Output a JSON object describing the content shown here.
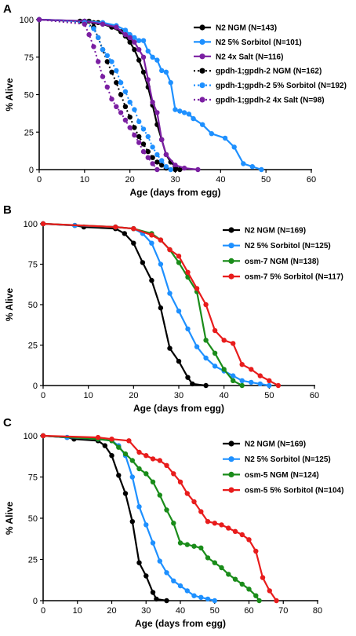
{
  "chart_data": [
    {
      "panel": "A",
      "type": "line",
      "xlabel": "Age (days from egg)",
      "ylabel": "% Alive",
      "xlim": [
        0,
        60
      ],
      "ylim": [
        0,
        100
      ],
      "xticks": [
        0,
        10,
        20,
        30,
        40,
        50,
        60
      ],
      "yticks": [
        0,
        25,
        50,
        75,
        100
      ],
      "legend": "top-right",
      "series": [
        {
          "name": "N2 NGM (N=143)",
          "color": "#000000",
          "style": "solid",
          "x": [
            0,
            9,
            10,
            11,
            12,
            13,
            14,
            16,
            18,
            19,
            20,
            21,
            22,
            23,
            24,
            25,
            26,
            27,
            28,
            29,
            30,
            31
          ],
          "y": [
            100,
            99,
            99,
            99,
            98,
            98,
            97,
            95,
            92,
            89,
            85,
            80,
            73,
            65,
            55,
            43,
            30,
            20,
            10,
            5,
            2,
            0
          ]
        },
        {
          "name": "N2 5% Sorbitol (N=101)",
          "color": "#1e90ff",
          "style": "solid",
          "x": [
            0,
            10,
            14,
            17,
            19,
            20,
            21,
            22,
            23,
            24,
            25,
            26,
            27,
            28,
            29,
            30,
            31,
            32,
            33,
            34,
            36,
            38,
            41,
            43,
            45,
            47,
            49
          ],
          "y": [
            100,
            99,
            98,
            96,
            93,
            90,
            88,
            86,
            86,
            79,
            75,
            73,
            66,
            65,
            58,
            40,
            39,
            38,
            37,
            34,
            30,
            24,
            21,
            15,
            4,
            2,
            0
          ]
        },
        {
          "name": "N2 4x Salt (N=116)",
          "color": "#7b1fa2",
          "style": "solid",
          "x": [
            0,
            10,
            14,
            17,
            19,
            20,
            21,
            22,
            23,
            24,
            25,
            26,
            27,
            28,
            30,
            32,
            35
          ],
          "y": [
            100,
            99,
            97,
            95,
            90,
            88,
            85,
            80,
            75,
            60,
            45,
            38,
            20,
            10,
            3,
            1,
            0
          ]
        },
        {
          "name": "gpdh-1;gpdh-2 NGM (N=162)",
          "color": "#000000",
          "style": "dotted",
          "x": [
            0,
            10,
            12,
            13,
            14,
            15,
            16,
            17,
            18,
            19,
            20,
            21,
            22,
            23,
            24,
            25,
            26,
            27,
            28,
            30
          ],
          "y": [
            100,
            98,
            95,
            88,
            80,
            72,
            65,
            58,
            50,
            42,
            35,
            28,
            22,
            17,
            12,
            8,
            5,
            3,
            1,
            0
          ]
        },
        {
          "name": "gpdh-1;gpdh-2 5% Sorbitol (N=192)",
          "color": "#1e90ff",
          "style": "dotted",
          "x": [
            0,
            10,
            12,
            13,
            14,
            15,
            16,
            17,
            18,
            19,
            20,
            21,
            22,
            23,
            24,
            25,
            26,
            27,
            28,
            29
          ],
          "y": [
            100,
            98,
            94,
            88,
            80,
            76,
            72,
            66,
            58,
            52,
            45,
            40,
            32,
            27,
            22,
            15,
            10,
            6,
            2,
            0
          ]
        },
        {
          "name": "gpdh-1;gpdh-2 4x Salt (N=98)",
          "color": "#7b1fa2",
          "style": "dotted",
          "x": [
            0,
            10,
            11,
            12,
            13,
            14,
            15,
            16,
            17,
            18,
            19,
            20,
            21,
            22,
            23,
            24,
            25,
            26
          ],
          "y": [
            100,
            97,
            90,
            82,
            72,
            62,
            55,
            47,
            42,
            38,
            33,
            28,
            23,
            18,
            12,
            8,
            4,
            0
          ]
        }
      ]
    },
    {
      "panel": "B",
      "type": "line",
      "xlabel": "Age (days from egg)",
      "ylabel": "% Alive",
      "xlim": [
        0,
        60
      ],
      "ylim": [
        0,
        100
      ],
      "xticks": [
        0,
        10,
        20,
        30,
        40,
        50,
        60
      ],
      "yticks": [
        0,
        25,
        50,
        75,
        100
      ],
      "legend": "top-right",
      "series": [
        {
          "name": "N2 NGM (N=169)",
          "color": "#000000",
          "style": "solid",
          "x": [
            0,
            7,
            9,
            16,
            18,
            20,
            22,
            24,
            26,
            28,
            30,
            32,
            33,
            36
          ],
          "y": [
            100,
            99,
            98,
            97,
            94,
            88,
            76,
            65,
            48,
            23,
            15,
            5,
            1,
            0
          ]
        },
        {
          "name": "N2 5% Sorbitol (N=125)",
          "color": "#1e90ff",
          "style": "solid",
          "x": [
            0,
            7,
            16,
            20,
            22,
            24,
            26,
            28,
            30,
            32,
            34,
            36,
            38,
            40,
            42,
            44,
            46,
            48,
            50
          ],
          "y": [
            100,
            99,
            98,
            97,
            94,
            88,
            75,
            57,
            46,
            35,
            24,
            17,
            12,
            9,
            6,
            3,
            2,
            1,
            0
          ]
        },
        {
          "name": "osm-7 NGM (N=138)",
          "color": "#1a8c1a",
          "style": "solid",
          "x": [
            0,
            16,
            20,
            24,
            26,
            28,
            30,
            32,
            34,
            36,
            38,
            40,
            42,
            44
          ],
          "y": [
            100,
            98,
            97,
            94,
            90,
            84,
            76,
            67,
            58,
            28,
            20,
            10,
            3,
            0
          ]
        },
        {
          "name": "osm-7 5% Sorbitol (N=117)",
          "color": "#e81c1c",
          "style": "solid",
          "x": [
            0,
            16,
            20,
            24,
            26,
            28,
            30,
            32,
            34,
            36,
            38,
            40,
            42,
            44,
            46,
            48,
            50,
            52
          ],
          "y": [
            100,
            98,
            97,
            93,
            90,
            84,
            80,
            70,
            60,
            50,
            34,
            28,
            26,
            13,
            10,
            6,
            3,
            0
          ]
        }
      ]
    },
    {
      "panel": "C",
      "type": "line",
      "xlabel": "Age (days from egg)",
      "ylabel": "% Alive",
      "xlim": [
        0,
        80
      ],
      "ylim": [
        0,
        100
      ],
      "xticks": [
        0,
        10,
        20,
        30,
        40,
        50,
        60,
        70,
        80
      ],
      "yticks": [
        0,
        25,
        50,
        75,
        100
      ],
      "legend": "top-right",
      "series": [
        {
          "name": "N2 NGM (N=169)",
          "color": "#000000",
          "style": "solid",
          "x": [
            0,
            7,
            9,
            16,
            18,
            20,
            22,
            24,
            26,
            28,
            30,
            32,
            33,
            36
          ],
          "y": [
            100,
            99,
            98,
            97,
            94,
            88,
            76,
            65,
            48,
            23,
            15,
            5,
            1,
            0
          ]
        },
        {
          "name": "N2 5% Sorbitol (N=125)",
          "color": "#1e90ff",
          "style": "solid",
          "x": [
            0,
            7,
            16,
            20,
            22,
            24,
            26,
            28,
            30,
            32,
            34,
            36,
            38,
            40,
            42,
            44,
            46,
            48,
            50
          ],
          "y": [
            100,
            99,
            98,
            97,
            94,
            88,
            75,
            57,
            46,
            35,
            24,
            17,
            12,
            9,
            6,
            3,
            2,
            1,
            0
          ]
        },
        {
          "name": "osm-5 NGM (N=124)",
          "color": "#1a8c1a",
          "style": "solid",
          "x": [
            0,
            16,
            20,
            22,
            24,
            26,
            28,
            30,
            32,
            34,
            36,
            38,
            40,
            42,
            44,
            46,
            48,
            50,
            52,
            54,
            56,
            58,
            60,
            62,
            63
          ],
          "y": [
            100,
            98,
            97,
            93,
            89,
            85,
            80,
            77,
            72,
            64,
            55,
            47,
            35,
            34,
            33,
            32,
            26,
            23,
            20,
            16,
            13,
            10,
            7,
            3,
            0
          ]
        },
        {
          "name": "osm-5 5% Sorbitol (N=104)",
          "color": "#e81c1c",
          "style": "solid",
          "x": [
            0,
            16,
            20,
            25,
            28,
            30,
            32,
            34,
            36,
            38,
            40,
            42,
            44,
            46,
            48,
            50,
            52,
            54,
            56,
            58,
            60,
            62,
            64,
            66,
            68
          ],
          "y": [
            100,
            99,
            98,
            97,
            90,
            88,
            86,
            85,
            82,
            77,
            72,
            65,
            60,
            54,
            48,
            47,
            46,
            44,
            42,
            40,
            37,
            30,
            14,
            6,
            0
          ]
        }
      ]
    }
  ]
}
